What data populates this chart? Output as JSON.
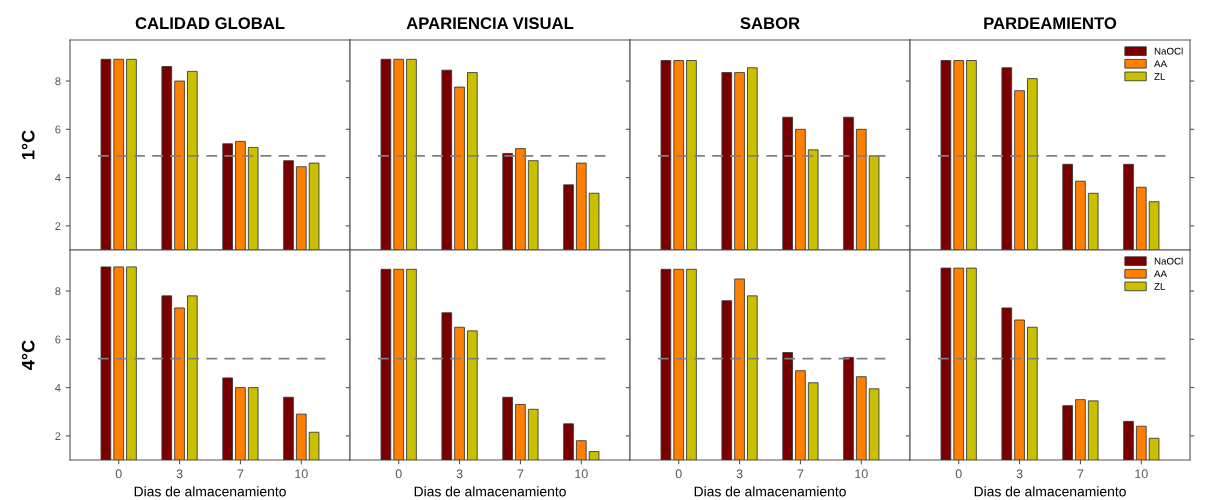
{
  "chart_data": [
    {
      "type": "bar",
      "title": "CALIDAD GLOBAL",
      "ylabel": "1°C",
      "categories": [
        "0",
        "3",
        "7",
        "10"
      ],
      "ylim": [
        1,
        9.7
      ],
      "yticks": [
        2,
        4,
        6,
        8
      ],
      "tick_labels": "y",
      "grid": false,
      "legend": false,
      "ref_lines": [
        {
          "axis": "y",
          "value": 4.9,
          "color": "#808080",
          "line_style": "dashed"
        }
      ],
      "series": [
        {
          "color": "#7a0000",
          "values": [
            8.9,
            8.6,
            5.4,
            4.7
          ]
        },
        {
          "color": "#ff8000",
          "values": [
            8.9,
            8.0,
            5.5,
            4.45
          ]
        },
        {
          "color": "#c8c000",
          "values": [
            8.9,
            8.4,
            5.25,
            4.6
          ]
        }
      ]
    },
    {
      "type": "bar",
      "title": "APARIENCIA VISUAL",
      "categories": [
        "0",
        "3",
        "7",
        "10"
      ],
      "ylim": [
        1,
        9.7
      ],
      "yticks": [
        {
          "value": 2,
          "label": null
        },
        {
          "value": 4,
          "label": null
        },
        {
          "value": 6,
          "label": null
        },
        {
          "value": 8,
          "label": null
        }
      ],
      "tick_labels": false,
      "grid": false,
      "legend": false,
      "ref_lines": [
        {
          "axis": "y",
          "value": 4.9,
          "color": "#808080",
          "line_style": "dashed"
        }
      ],
      "series": [
        {
          "color": "#7a0000",
          "values": [
            8.9,
            8.45,
            5.0,
            3.7
          ]
        },
        {
          "color": "#ff8000",
          "values": [
            8.9,
            7.75,
            5.2,
            4.6
          ]
        },
        {
          "color": "#c8c000",
          "values": [
            8.9,
            8.35,
            4.7,
            3.35
          ]
        }
      ]
    },
    {
      "type": "bar",
      "title": "SABOR",
      "categories": [
        "0",
        "3",
        "7",
        "10"
      ],
      "ylim": [
        1,
        9.7
      ],
      "yticks": [
        {
          "value": 2,
          "label": null
        },
        {
          "value": 4,
          "label": null
        },
        {
          "value": 6,
          "label": null
        },
        {
          "value": 8,
          "label": null
        }
      ],
      "tick_labels": false,
      "grid": false,
      "legend": false,
      "ref_lines": [
        {
          "axis": "y",
          "value": 4.9,
          "color": "#808080",
          "line_style": "dashed"
        }
      ],
      "series": [
        {
          "color": "#7a0000",
          "values": [
            8.85,
            8.35,
            6.5,
            6.5
          ]
        },
        {
          "color": "#ff8000",
          "values": [
            8.85,
            8.35,
            6.0,
            6.0
          ]
        },
        {
          "color": "#c8c000",
          "values": [
            8.85,
            8.55,
            5.15,
            4.9
          ]
        }
      ]
    },
    {
      "type": "bar",
      "title": "PARDEAMIENTO",
      "categories": [
        "0",
        "3",
        "7",
        "10"
      ],
      "ylim": [
        1,
        9.7
      ],
      "yticks": [
        {
          "value": 2,
          "label": null
        },
        {
          "value": 4,
          "label": null
        },
        {
          "value": 6,
          "label": null
        },
        {
          "value": 8,
          "label": null
        }
      ],
      "tick_labels": false,
      "grid": false,
      "legend": "top right",
      "ref_lines": [
        {
          "axis": "y",
          "value": 4.9,
          "color": "#808080",
          "line_style": "dashed"
        }
      ],
      "series": [
        {
          "name": "NaOCl",
          "color": "#7a0000",
          "values": [
            8.85,
            8.55,
            4.55,
            4.55
          ]
        },
        {
          "name": "AA",
          "color": "#ff8000",
          "values": [
            8.85,
            7.6,
            3.85,
            3.6
          ]
        },
        {
          "name": "ZL",
          "color": "#c8c000",
          "values": [
            8.85,
            8.1,
            3.35,
            3.0
          ]
        }
      ]
    },
    {
      "type": "bar",
      "xlabel": "Dias de almacenamiento",
      "ylabel": "4°C",
      "categories": [
        "0",
        "3",
        "7",
        "10"
      ],
      "ylim": [
        1,
        9.7
      ],
      "yticks": [
        2,
        4,
        6,
        8
      ],
      "grid": false,
      "legend": false,
      "ref_lines": [
        {
          "axis": "y",
          "value": 5.2,
          "color": "#808080",
          "line_style": "dashed"
        }
      ],
      "series": [
        {
          "color": "#7a0000",
          "values": [
            9.0,
            7.8,
            4.4,
            3.6
          ]
        },
        {
          "color": "#ff8000",
          "values": [
            9.0,
            7.3,
            4.0,
            2.9
          ]
        },
        {
          "color": "#c8c000",
          "values": [
            9.0,
            7.8,
            4.0,
            2.15
          ]
        }
      ]
    },
    {
      "type": "bar",
      "xlabel": "Dias de almacenamiento",
      "categories": [
        "0",
        "3",
        "7",
        "10"
      ],
      "ylim": [
        1,
        9.7
      ],
      "yticks": [
        {
          "value": 2,
          "label": null
        },
        {
          "value": 4,
          "label": null
        },
        {
          "value": 6,
          "label": null
        },
        {
          "value": 8,
          "label": null
        }
      ],
      "tick_labels": "x",
      "grid": false,
      "legend": false,
      "ref_lines": [
        {
          "axis": "y",
          "value": 5.2,
          "color": "#808080",
          "line_style": "dashed"
        }
      ],
      "series": [
        {
          "color": "#7a0000",
          "values": [
            8.9,
            7.1,
            3.6,
            2.5
          ]
        },
        {
          "color": "#ff8000",
          "values": [
            8.9,
            6.5,
            3.3,
            1.8
          ]
        },
        {
          "color": "#c8c000",
          "values": [
            8.9,
            6.35,
            3.1,
            1.35
          ]
        }
      ]
    },
    {
      "type": "bar",
      "xlabel": "Dias de almacenamiento",
      "categories": [
        "0",
        "3",
        "7",
        "10"
      ],
      "ylim": [
        1,
        9.7
      ],
      "yticks": [
        {
          "value": 2,
          "label": null
        },
        {
          "value": 4,
          "label": null
        },
        {
          "value": 6,
          "label": null
        },
        {
          "value": 8,
          "label": null
        }
      ],
      "tick_labels": "x",
      "grid": false,
      "legend": false,
      "ref_lines": [
        {
          "axis": "y",
          "value": 5.2,
          "color": "#808080",
          "line_style": "dashed"
        }
      ],
      "series": [
        {
          "color": "#7a0000",
          "values": [
            8.9,
            7.6,
            5.45,
            5.25
          ]
        },
        {
          "color": "#ff8000",
          "values": [
            8.9,
            8.5,
            4.7,
            4.45
          ]
        },
        {
          "color": "#c8c000",
          "values": [
            8.9,
            7.8,
            4.2,
            3.95
          ]
        }
      ]
    },
    {
      "type": "bar",
      "xlabel": "Dias de almacenamiento",
      "categories": [
        "0",
        "3",
        "7",
        "10"
      ],
      "ylim": [
        1,
        9.7
      ],
      "yticks": [
        {
          "value": 2,
          "label": null
        },
        {
          "value": 4,
          "label": null
        },
        {
          "value": 6,
          "label": null
        },
        {
          "value": 8,
          "label": null
        }
      ],
      "tick_labels": "x",
      "grid": false,
      "legend": "top right",
      "ref_lines": [
        {
          "axis": "y",
          "value": 5.2,
          "color": "#808080",
          "line_style": "dashed"
        }
      ],
      "series": [
        {
          "name": "NaOCl",
          "color": "#7a0000",
          "values": [
            8.95,
            7.3,
            3.25,
            2.6
          ]
        },
        {
          "name": "AA",
          "color": "#ff8000",
          "values": [
            8.95,
            6.8,
            3.5,
            2.4
          ]
        },
        {
          "name": "ZL",
          "color": "#c8c000",
          "values": [
            8.95,
            6.5,
            3.45,
            1.9
          ]
        }
      ]
    }
  ]
}
